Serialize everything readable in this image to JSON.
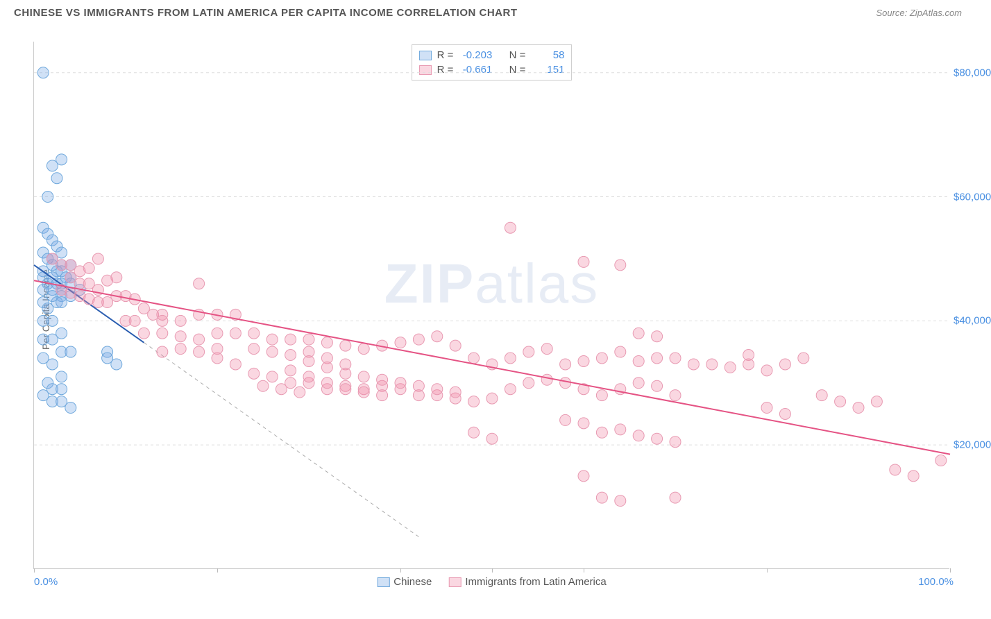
{
  "header": {
    "title": "CHINESE VS IMMIGRANTS FROM LATIN AMERICA PER CAPITA INCOME CORRELATION CHART",
    "source": "Source: ZipAtlas.com"
  },
  "chart": {
    "type": "scatter",
    "ylabel": "Per Capita Income",
    "xlim": [
      0,
      100
    ],
    "ylim": [
      0,
      85000
    ],
    "x_axis_left_label": "0.0%",
    "x_axis_right_label": "100.0%",
    "xtick_positions_pct": [
      0,
      20,
      40,
      50,
      60,
      80,
      100
    ],
    "y_gridlines": [
      20000,
      40000,
      60000,
      80000
    ],
    "y_tick_labels": [
      "$20,000",
      "$40,000",
      "$60,000",
      "$80,000"
    ],
    "background_color": "#ffffff",
    "grid_color": "#dddddd",
    "axis_color": "#cccccc",
    "tick_label_color": "#4a90e2",
    "watermark_text_bold": "ZIP",
    "watermark_text_rest": "atlas",
    "series": [
      {
        "name": "Chinese",
        "marker_fill": "rgba(120,170,230,0.35)",
        "marker_stroke": "#6fa8dc",
        "marker_radius": 8,
        "line_color": "#2a5db0",
        "line_dash_color": "#aaaaaa",
        "line_width": 2,
        "regression": {
          "x1": 0,
          "y1": 49000,
          "x2": 12,
          "y2": 36500
        },
        "regression_ext": {
          "x1": 12,
          "y1": 36500,
          "x2": 42,
          "y2": 5200
        },
        "points": [
          [
            1,
            80000
          ],
          [
            2,
            65000
          ],
          [
            3,
            66000
          ],
          [
            2.5,
            63000
          ],
          [
            1.5,
            60000
          ],
          [
            1,
            55000
          ],
          [
            1.5,
            54000
          ],
          [
            2,
            53000
          ],
          [
            2.5,
            52000
          ],
          [
            1,
            51000
          ],
          [
            3,
            51000
          ],
          [
            2,
            50000
          ],
          [
            1.5,
            50000
          ],
          [
            3,
            49000
          ],
          [
            2,
            49000
          ],
          [
            4,
            49000
          ],
          [
            1,
            48000
          ],
          [
            2.5,
            48000
          ],
          [
            3,
            48000
          ],
          [
            1,
            47000
          ],
          [
            2,
            47000
          ],
          [
            3.5,
            47000
          ],
          [
            4,
            47000
          ],
          [
            1.5,
            46000
          ],
          [
            2.5,
            46000
          ],
          [
            3,
            46000
          ],
          [
            4,
            46000
          ],
          [
            1,
            45000
          ],
          [
            2,
            45000
          ],
          [
            3,
            45000
          ],
          [
            5,
            45000
          ],
          [
            2,
            44000
          ],
          [
            3,
            44000
          ],
          [
            4,
            44000
          ],
          [
            1,
            43000
          ],
          [
            2.5,
            43000
          ],
          [
            3,
            43000
          ],
          [
            1.5,
            42000
          ],
          [
            1,
            40000
          ],
          [
            2,
            40000
          ],
          [
            3,
            38000
          ],
          [
            1,
            37000
          ],
          [
            2,
            37000
          ],
          [
            3,
            35000
          ],
          [
            4,
            35000
          ],
          [
            8,
            35000
          ],
          [
            1,
            34000
          ],
          [
            2,
            33000
          ],
          [
            3,
            31000
          ],
          [
            1.5,
            30000
          ],
          [
            2,
            29000
          ],
          [
            3,
            29000
          ],
          [
            8,
            34000
          ],
          [
            9,
            33000
          ],
          [
            1,
            28000
          ],
          [
            2,
            27000
          ],
          [
            3,
            27000
          ],
          [
            4,
            26000
          ]
        ]
      },
      {
        "name": "Immigrants from Latin America",
        "marker_fill": "rgba(240,140,170,0.35)",
        "marker_stroke": "#e89ab2",
        "marker_radius": 8,
        "line_color": "#e55384",
        "line_width": 2,
        "regression": {
          "x1": 0,
          "y1": 46500,
          "x2": 100,
          "y2": 18500
        },
        "points": [
          [
            2,
            50000
          ],
          [
            3,
            49000
          ],
          [
            4,
            49000
          ],
          [
            5,
            48000
          ],
          [
            6,
            48500
          ],
          [
            7,
            50000
          ],
          [
            4,
            47000
          ],
          [
            5,
            46000
          ],
          [
            6,
            46000
          ],
          [
            7,
            45000
          ],
          [
            8,
            46500
          ],
          [
            9,
            47000
          ],
          [
            18,
            46000
          ],
          [
            3,
            45000
          ],
          [
            4,
            44500
          ],
          [
            5,
            44000
          ],
          [
            6,
            43500
          ],
          [
            7,
            43000
          ],
          [
            8,
            43000
          ],
          [
            9,
            44000
          ],
          [
            10,
            44000
          ],
          [
            11,
            43500
          ],
          [
            12,
            42000
          ],
          [
            13,
            41000
          ],
          [
            14,
            41000
          ],
          [
            10,
            40000
          ],
          [
            11,
            40000
          ],
          [
            14,
            40000
          ],
          [
            16,
            40000
          ],
          [
            18,
            41000
          ],
          [
            20,
            41000
          ],
          [
            22,
            41000
          ],
          [
            12,
            38000
          ],
          [
            14,
            38000
          ],
          [
            16,
            37500
          ],
          [
            18,
            37000
          ],
          [
            20,
            38000
          ],
          [
            22,
            38000
          ],
          [
            24,
            38000
          ],
          [
            26,
            37000
          ],
          [
            28,
            37000
          ],
          [
            30,
            37000
          ],
          [
            32,
            36500
          ],
          [
            34,
            36000
          ],
          [
            36,
            35500
          ],
          [
            38,
            36000
          ],
          [
            40,
            36500
          ],
          [
            42,
            37000
          ],
          [
            44,
            37500
          ],
          [
            46,
            36000
          ],
          [
            48,
            34000
          ],
          [
            50,
            33000
          ],
          [
            52,
            34000
          ],
          [
            54,
            35000
          ],
          [
            56,
            35500
          ],
          [
            30,
            35000
          ],
          [
            32,
            34000
          ],
          [
            34,
            33000
          ],
          [
            20,
            34000
          ],
          [
            22,
            33000
          ],
          [
            24,
            31500
          ],
          [
            26,
            31000
          ],
          [
            28,
            30000
          ],
          [
            30,
            30000
          ],
          [
            32,
            29000
          ],
          [
            34,
            29500
          ],
          [
            36,
            29000
          ],
          [
            38,
            29500
          ],
          [
            40,
            29000
          ],
          [
            42,
            28000
          ],
          [
            44,
            28000
          ],
          [
            46,
            27500
          ],
          [
            48,
            27000
          ],
          [
            50,
            27500
          ],
          [
            52,
            29000
          ],
          [
            54,
            30000
          ],
          [
            56,
            30500
          ],
          [
            58,
            30000
          ],
          [
            60,
            29000
          ],
          [
            62,
            28000
          ],
          [
            64,
            29000
          ],
          [
            66,
            30000
          ],
          [
            68,
            29500
          ],
          [
            70,
            28000
          ],
          [
            58,
            33000
          ],
          [
            60,
            33500
          ],
          [
            62,
            34000
          ],
          [
            64,
            35000
          ],
          [
            66,
            33500
          ],
          [
            68,
            34000
          ],
          [
            70,
            34000
          ],
          [
            72,
            33000
          ],
          [
            74,
            33000
          ],
          [
            76,
            32500
          ],
          [
            78,
            33000
          ],
          [
            80,
            32000
          ],
          [
            82,
            33000
          ],
          [
            84,
            34000
          ],
          [
            52,
            55000
          ],
          [
            60,
            49500
          ],
          [
            64,
            49000
          ],
          [
            66,
            38000
          ],
          [
            68,
            37500
          ],
          [
            58,
            24000
          ],
          [
            60,
            23500
          ],
          [
            62,
            22000
          ],
          [
            64,
            22500
          ],
          [
            66,
            21500
          ],
          [
            68,
            21000
          ],
          [
            70,
            20500
          ],
          [
            48,
            22000
          ],
          [
            50,
            21000
          ],
          [
            62,
            11500
          ],
          [
            64,
            11000
          ],
          [
            70,
            11500
          ],
          [
            86,
            28000
          ],
          [
            88,
            27000
          ],
          [
            90,
            26000
          ],
          [
            92,
            27000
          ],
          [
            78,
            34500
          ],
          [
            80,
            26000
          ],
          [
            82,
            25000
          ],
          [
            60,
            15000
          ],
          [
            94,
            16000
          ],
          [
            96,
            15000
          ],
          [
            99,
            17500
          ],
          [
            28,
            34500
          ],
          [
            30,
            33500
          ],
          [
            32,
            32500
          ],
          [
            34,
            31500
          ],
          [
            36,
            31000
          ],
          [
            38,
            30500
          ],
          [
            40,
            30000
          ],
          [
            42,
            29500
          ],
          [
            44,
            29000
          ],
          [
            46,
            28500
          ],
          [
            24,
            35500
          ],
          [
            26,
            35000
          ],
          [
            28,
            32000
          ],
          [
            30,
            31000
          ],
          [
            32,
            30000
          ],
          [
            34,
            29000
          ],
          [
            36,
            28500
          ],
          [
            38,
            28000
          ],
          [
            25,
            29500
          ],
          [
            27,
            29000
          ],
          [
            29,
            28500
          ],
          [
            14,
            35000
          ],
          [
            16,
            35500
          ],
          [
            18,
            35000
          ],
          [
            20,
            35500
          ]
        ]
      }
    ],
    "stats": [
      {
        "swatch_fill": "rgba(120,170,230,0.35)",
        "swatch_stroke": "#6fa8dc",
        "r_label": "R =",
        "r_value": "-0.203",
        "n_label": "N =",
        "n_value": "58"
      },
      {
        "swatch_fill": "rgba(240,140,170,0.35)",
        "swatch_stroke": "#e89ab2",
        "r_label": "R =",
        "r_value": "-0.661",
        "n_label": "N =",
        "n_value": "151"
      }
    ],
    "legend": [
      {
        "swatch_fill": "rgba(120,170,230,0.35)",
        "swatch_stroke": "#6fa8dc",
        "label": "Chinese"
      },
      {
        "swatch_fill": "rgba(240,140,170,0.35)",
        "swatch_stroke": "#e89ab2",
        "label": "Immigrants from Latin America"
      }
    ]
  }
}
